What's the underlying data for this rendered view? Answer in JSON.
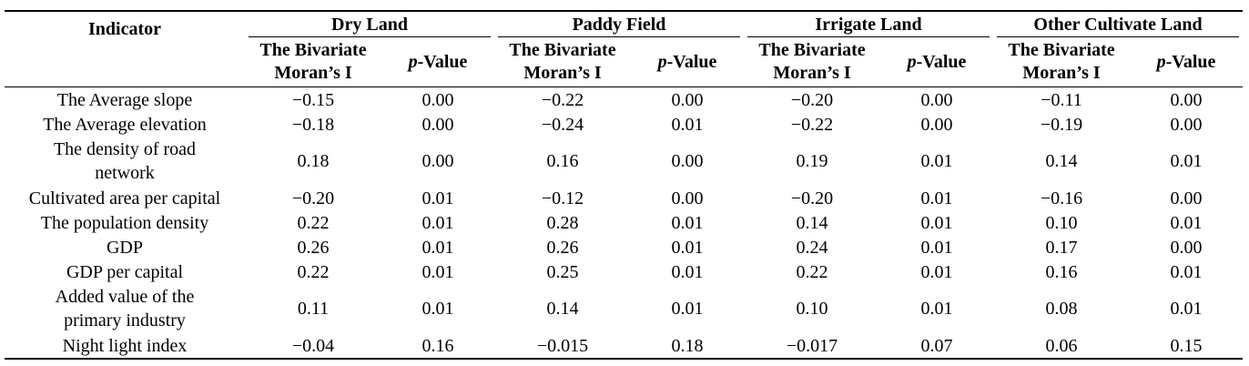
{
  "header": {
    "indicator": "Indicator",
    "groups": [
      "Dry Land",
      "Paddy Field",
      "Irrigate Land",
      "Other Cultivate Land"
    ],
    "moran_line1": "The Bivariate",
    "moran_line2": "Moran’s I",
    "p_letter": "p",
    "p_rest": "-Value"
  },
  "rows": [
    {
      "indicator": "The Average slope",
      "cells": [
        "−0.15",
        "0.00",
        "−0.22",
        "0.00",
        "−0.20",
        "0.00",
        "−0.11",
        "0.00"
      ]
    },
    {
      "indicator": "The Average elevation",
      "cells": [
        "−0.18",
        "0.00",
        "−0.24",
        "0.01",
        "−0.22",
        "0.00",
        "−0.19",
        "0.00"
      ]
    },
    {
      "indicator_line1": "The density of road",
      "indicator_line2": "network",
      "cells": [
        "0.18",
        "0.00",
        "0.16",
        "0.00",
        "0.19",
        "0.01",
        "0.14",
        "0.01"
      ]
    },
    {
      "indicator": "Cultivated area per capital",
      "cells": [
        "−0.20",
        "0.01",
        "−0.12",
        "0.00",
        "−0.20",
        "0.01",
        "−0.16",
        "0.00"
      ]
    },
    {
      "indicator": "The population density",
      "cells": [
        "0.22",
        "0.01",
        "0.28",
        "0.01",
        "0.14",
        "0.01",
        "0.10",
        "0.01"
      ]
    },
    {
      "indicator": "GDP",
      "cells": [
        "0.26",
        "0.01",
        "0.26",
        "0.01",
        "0.24",
        "0.01",
        "0.17",
        "0.00"
      ]
    },
    {
      "indicator": "GDP per capital",
      "cells": [
        "0.22",
        "0.01",
        "0.25",
        "0.01",
        "0.22",
        "0.01",
        "0.16",
        "0.01"
      ]
    },
    {
      "indicator_line1": "Added value of the",
      "indicator_line2": "primary industry",
      "cells": [
        "0.11",
        "0.01",
        "0.14",
        "0.01",
        "0.10",
        "0.01",
        "0.08",
        "0.01"
      ]
    },
    {
      "indicator": "Night light index",
      "cells": [
        "−0.04",
        "0.16",
        "−0.015",
        "0.18",
        "−0.017",
        "0.07",
        "0.06",
        "0.15"
      ]
    }
  ]
}
